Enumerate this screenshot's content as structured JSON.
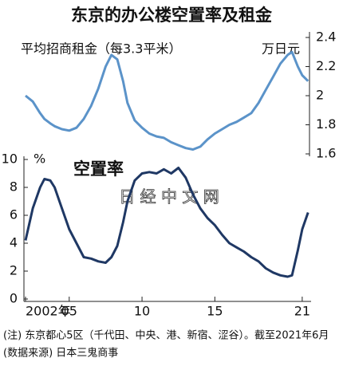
{
  "chart_data": {
    "type": "line",
    "title": "东京的办公楼空置率及租金",
    "x": [
      2002.0,
      2002.5,
      2003.0,
      2003.3,
      2003.7,
      2004.0,
      2004.5,
      2005.0,
      2005.5,
      2006.0,
      2006.5,
      2007.0,
      2007.5,
      2007.9,
      2008.3,
      2008.7,
      2009.0,
      2009.5,
      2010.0,
      2010.5,
      2011.0,
      2011.5,
      2012.0,
      2012.5,
      2013.0,
      2013.5,
      2014.0,
      2014.5,
      2015.0,
      2015.5,
      2016.0,
      2016.5,
      2017.0,
      2017.5,
      2018.0,
      2018.5,
      2019.0,
      2019.5,
      2020.0,
      2020.3,
      2020.7,
      2021.0,
      2021.4
    ],
    "series": [
      {
        "name": "平均招商租金（每3.3平米）",
        "color": "#5b93c9",
        "axis": "y2",
        "values": [
          2.0,
          1.96,
          1.88,
          1.84,
          1.81,
          1.79,
          1.77,
          1.76,
          1.78,
          1.84,
          1.93,
          2.05,
          2.2,
          2.28,
          2.25,
          2.1,
          1.95,
          1.83,
          1.78,
          1.74,
          1.72,
          1.71,
          1.68,
          1.66,
          1.64,
          1.63,
          1.65,
          1.7,
          1.74,
          1.77,
          1.8,
          1.82,
          1.85,
          1.88,
          1.95,
          2.04,
          2.13,
          2.22,
          2.28,
          2.3,
          2.2,
          2.14,
          2.1
        ]
      },
      {
        "name": "空置率",
        "color": "#1f3864",
        "values": [
          4.2,
          6.5,
          8.0,
          8.6,
          8.5,
          8.0,
          6.5,
          5.0,
          4.0,
          3.0,
          2.9,
          2.7,
          2.6,
          3.0,
          3.8,
          5.5,
          7.0,
          8.5,
          9.0,
          9.1,
          9.0,
          9.3,
          9.0,
          9.4,
          8.7,
          7.5,
          6.5,
          5.8,
          5.3,
          4.6,
          4.0,
          3.7,
          3.4,
          3.0,
          2.7,
          2.2,
          1.9,
          1.7,
          1.6,
          1.7,
          3.5,
          5.0,
          6.2
        ]
      }
    ],
    "xlim": [
      2002,
      2021.5
    ],
    "xticks": [
      {
        "value": 2002,
        "label": "2002年"
      },
      {
        "value": 2005,
        "label": "05"
      },
      {
        "value": 2010,
        "label": "10"
      },
      {
        "value": 2015,
        "label": "15"
      },
      {
        "value": 2021,
        "label": "21"
      }
    ],
    "ylim": [
      0,
      10
    ],
    "yticks": [
      0,
      2,
      4,
      6,
      8,
      10
    ],
    "y_unit": "%",
    "y2lim": [
      1.6,
      2.4
    ],
    "y2ticks": [
      1.6,
      1.8,
      2.0,
      2.2,
      2.4
    ],
    "y2_unit": "万日元",
    "watermark": "日 经 中 文 网",
    "notes": [
      "(注) 东京都心5区（千代田、中央、港、新宿、涩谷）。截至2021年6月",
      "(数据来源) 日本三鬼商事"
    ]
  }
}
